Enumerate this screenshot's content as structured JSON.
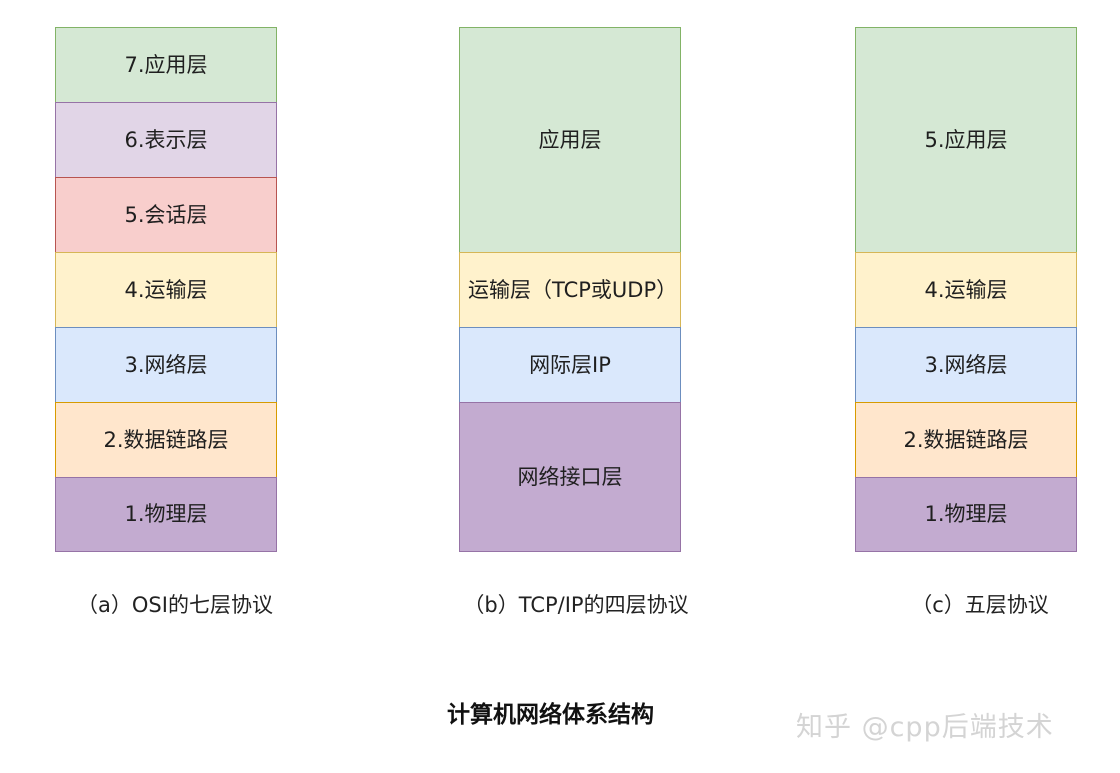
{
  "colors": {
    "application": {
      "fill": "#d5e8d4",
      "border": "#82b366"
    },
    "presentation": {
      "fill": "#e1d5e7",
      "border": "#9673a6"
    },
    "session": {
      "fill": "#f8cecc",
      "border": "#b85450"
    },
    "transport": {
      "fill": "#fff2cc",
      "border": "#d6b656"
    },
    "network": {
      "fill": "#dae8fc",
      "border": "#6c8ebf"
    },
    "datalink": {
      "fill": "#ffe6cc",
      "border": "#d79b00"
    },
    "physical": {
      "fill": "#c3abd0",
      "border": "#9673a6"
    }
  },
  "osi": {
    "layers": [
      "7.应用层",
      "6.表示层",
      "5.会话层",
      "4.运输层",
      "3.网络层",
      "2.数据链路层",
      "1.物理层"
    ],
    "caption": "（a）OSI的七层协议"
  },
  "tcpip": {
    "layers": [
      "应用层",
      "运输层（TCP或UDP）",
      "网际层IP",
      "网络接口层"
    ],
    "caption": "（b）TCP/IP的四层协议"
  },
  "five": {
    "layers": [
      "5.应用层",
      "4.运输层",
      "3.网络层",
      "2.数据链路层",
      "1.物理层"
    ],
    "caption": "（c）五层协议"
  },
  "title": "计算机网络体系结构",
  "watermark": "知乎 @cpp后端技术"
}
